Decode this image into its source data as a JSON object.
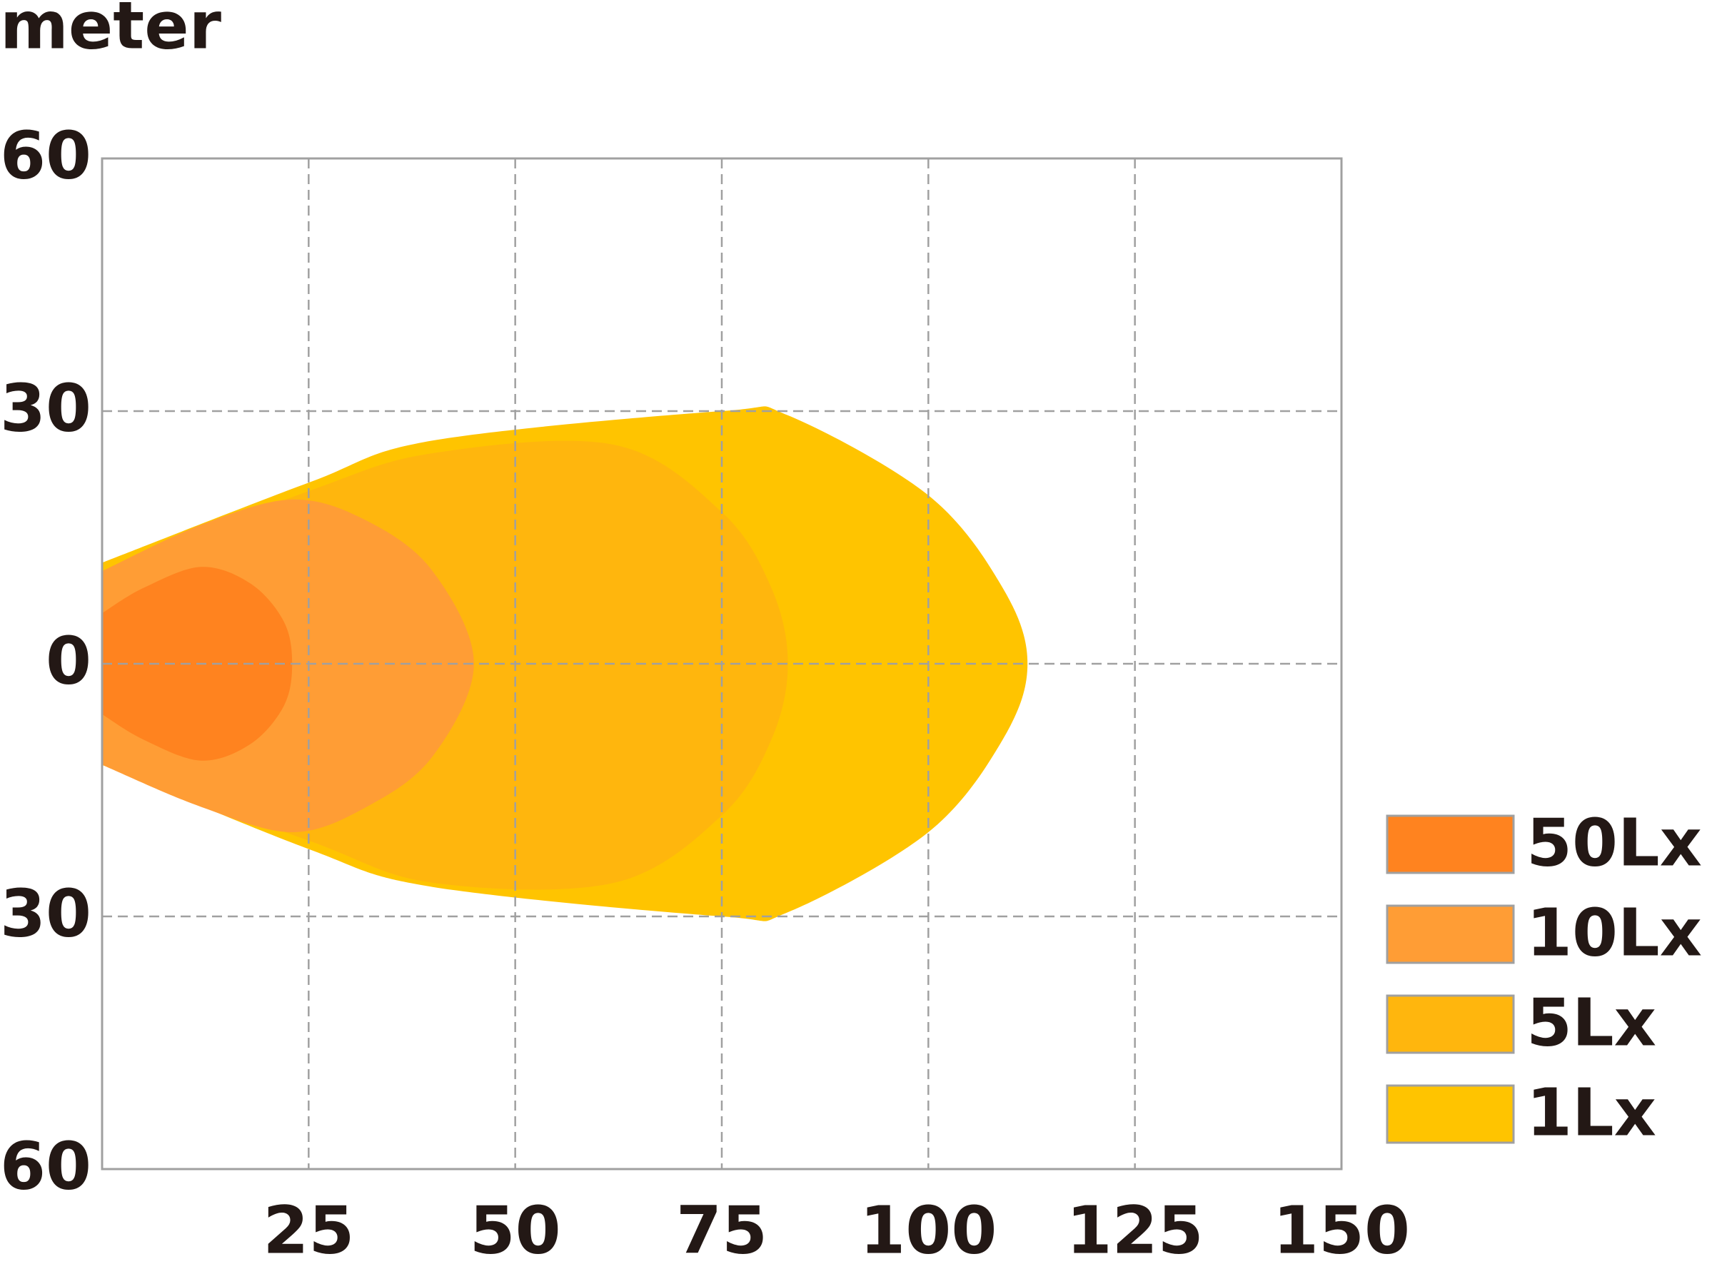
{
  "chart_data": {
    "type": "area",
    "y_label": "meter",
    "xlim": [
      0,
      150
    ],
    "xticks": [
      25,
      50,
      75,
      100,
      125,
      150
    ],
    "ylim": [
      -60,
      60
    ],
    "yticks": [
      {
        "value": -60,
        "label": "60"
      },
      {
        "value": -30,
        "label": "30"
      },
      0,
      30,
      60
    ],
    "grid": true,
    "legend": "right",
    "series": [
      {
        "name": "50Lx",
        "color": "#ff831f",
        "x": [
          0,
          5,
          12,
          18,
          22,
          23,
          22,
          18,
          12,
          5,
          0
        ],
        "y": [
          6,
          9,
          11.5,
          9.5,
          5,
          0,
          -5,
          -9.5,
          -11.5,
          -9,
          -6
        ]
      },
      {
        "name": "10Lx",
        "color": "#ff9d35",
        "x": [
          0,
          12,
          23,
          32,
          40,
          45,
          40,
          32,
          23,
          12,
          0
        ],
        "y": [
          11,
          16.5,
          19.5,
          17,
          11,
          0,
          -11,
          -17,
          -20,
          -17,
          -12
        ]
      },
      {
        "name": "5Lx",
        "color": "#ffb60d",
        "x": [
          0,
          25,
          40,
          62,
          75,
          81,
          83,
          81,
          75,
          62,
          40,
          25,
          0
        ],
        "y": [
          11,
          20.5,
          25,
          26,
          18,
          9,
          0,
          -9,
          -18,
          -26,
          -26,
          -21,
          -12
        ]
      },
      {
        "name": "1Lx",
        "color": "#ffc400",
        "x": [
          0,
          25,
          40,
          75,
          83,
          100,
          109,
          112,
          109,
          100,
          83,
          75,
          40,
          25,
          0
        ],
        "y": [
          12,
          21.5,
          26.5,
          30,
          29.5,
          20,
          9,
          0,
          -9,
          -20,
          -29.5,
          -30,
          -26.5,
          -22,
          -12
        ]
      }
    ]
  }
}
